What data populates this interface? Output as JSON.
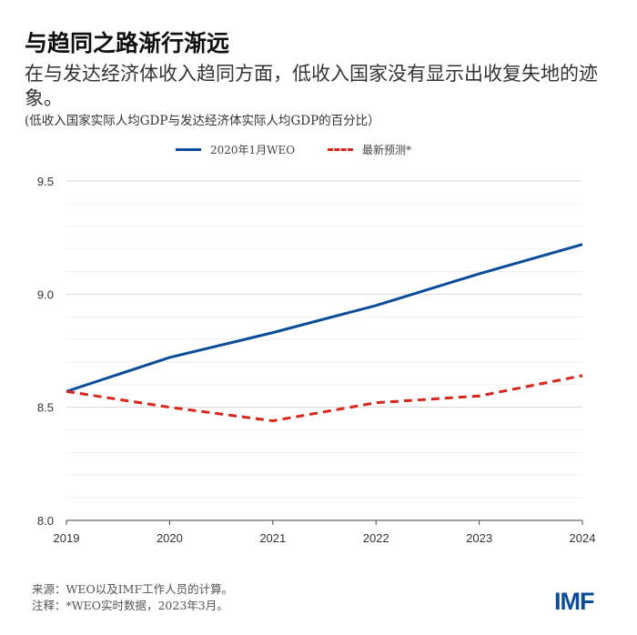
{
  "title": "与趋同之路渐行渐远",
  "subtitle": "在与发达经济体收入趋同方面，低收入国家没有显示出收复失地的迹象。",
  "unit": "(低收入国家实际人均GDP与发达经济体实际人均GDP的百分比）",
  "source": "来源：WEO以及IMF工作人员的计算。",
  "note": "注释：*WEO实时数据，2023年3月。",
  "logo": "IMF",
  "chart_data": {
    "type": "line",
    "x": [
      2019,
      2020,
      2021,
      2022,
      2023,
      2024
    ],
    "xtick_labels": [
      "2019",
      "2020",
      "2021",
      "2022",
      "2023",
      "2024"
    ],
    "ylim": [
      8.0,
      9.5
    ],
    "yticks": [
      8.0,
      8.5,
      9.0,
      9.5
    ],
    "ytick_labels": [
      "8.0",
      "8.5",
      "9.0",
      "9.5"
    ],
    "grid": true,
    "legend_placement": "top",
    "series": [
      {
        "name": "2020年1月WEO",
        "color": "#0a4c9a",
        "style": "solid",
        "values": [
          8.57,
          8.72,
          8.83,
          8.95,
          9.09,
          9.22
        ]
      },
      {
        "name": "最新预测*",
        "color": "#d9261c",
        "style": "dashed",
        "values": [
          8.57,
          8.5,
          8.44,
          8.52,
          8.55,
          8.64
        ]
      }
    ]
  }
}
